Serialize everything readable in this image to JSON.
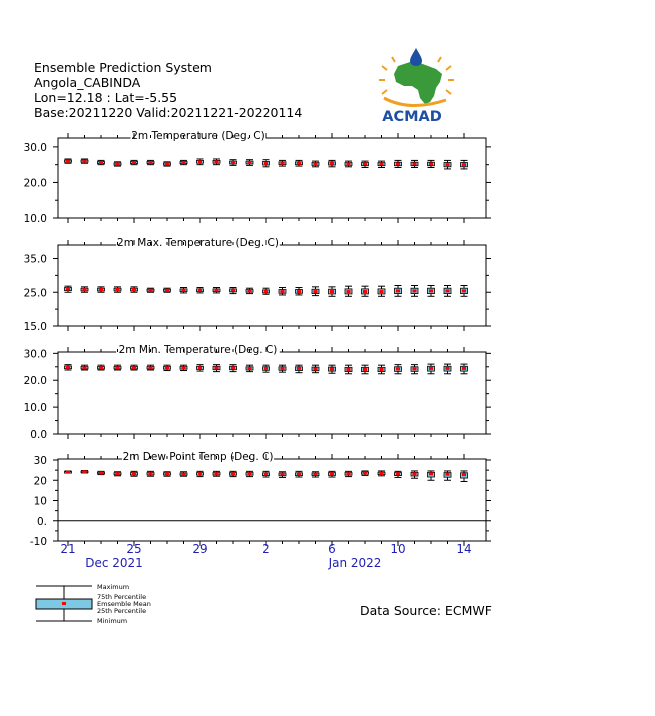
{
  "header": {
    "line1": "Ensemble Prediction System",
    "line2": "Angola_CABINDA",
    "line3": "Lon=12.18 : Lat=-5.55",
    "line4": "Base:20211220 Valid:20211221-20220114"
  },
  "logo": {
    "text": "ACMAD"
  },
  "source": "Data Source: ECMWF",
  "legend": {
    "items": [
      "Maximum",
      "75th Percentile",
      "Emsemble Mean",
      "25th Percentile",
      "Minimum"
    ]
  },
  "colors": {
    "axis_label": "#1f1fb4",
    "mean": "#ff0000",
    "box_fill": "#7ec8e3",
    "logo_blue": "#1e4fa3",
    "logo_green": "#3a9a3a",
    "logo_orange": "#f0a020"
  },
  "chart_data": [
    {
      "type": "box",
      "title": "2m Temperature (Deg. C)",
      "ylim": [
        10,
        32.5
      ],
      "yticks": [
        "30.0",
        "20.0",
        "10.0"
      ],
      "ytick_values": [
        30,
        20,
        10
      ],
      "x": [
        21,
        22,
        23,
        24,
        25,
        26,
        27,
        28,
        29,
        30,
        31,
        1,
        2,
        3,
        4,
        5,
        6,
        7,
        8,
        9,
        10,
        11,
        12,
        13,
        14
      ],
      "mean": [
        26.0,
        26.0,
        25.6,
        25.2,
        25.6,
        25.6,
        25.2,
        25.6,
        25.8,
        25.8,
        25.6,
        25.6,
        25.4,
        25.4,
        25.4,
        25.2,
        25.4,
        25.2,
        25.2,
        25.2,
        25.2,
        25.2,
        25.2,
        25.0,
        25.0
      ],
      "min": [
        25.4,
        25.4,
        25.0,
        24.6,
        25.0,
        25.0,
        24.6,
        25.0,
        25.0,
        25.0,
        24.8,
        24.8,
        24.4,
        24.6,
        24.6,
        24.4,
        24.4,
        24.4,
        24.2,
        24.2,
        24.2,
        24.2,
        24.2,
        23.8,
        23.8
      ],
      "max": [
        26.6,
        26.6,
        26.2,
        25.8,
        26.2,
        26.2,
        25.8,
        26.2,
        26.6,
        26.6,
        26.4,
        26.4,
        26.4,
        26.2,
        26.2,
        26.0,
        26.2,
        26.0,
        26.0,
        26.0,
        26.2,
        26.2,
        26.2,
        26.2,
        26.2
      ]
    },
    {
      "type": "box",
      "title": "2m Max. Temperature (Deg. C)",
      "ylim": [
        15,
        39
      ],
      "yticks": [
        "35.0",
        "25.0",
        "15.0"
      ],
      "ytick_values": [
        35,
        25,
        15
      ],
      "x": [
        21,
        22,
        23,
        24,
        25,
        26,
        27,
        28,
        29,
        30,
        31,
        1,
        2,
        3,
        4,
        5,
        6,
        7,
        8,
        9,
        10,
        11,
        12,
        13,
        14
      ],
      "mean": [
        26.0,
        25.8,
        25.8,
        25.8,
        25.8,
        25.6,
        25.6,
        25.6,
        25.6,
        25.6,
        25.6,
        25.4,
        25.2,
        25.2,
        25.2,
        25.2,
        25.2,
        25.2,
        25.2,
        25.2,
        25.4,
        25.4,
        25.4,
        25.4,
        25.4
      ],
      "min": [
        25.0,
        25.0,
        25.0,
        25.0,
        25.0,
        25.0,
        25.0,
        24.8,
        24.8,
        24.8,
        24.6,
        24.6,
        24.4,
        24.2,
        24.2,
        24.0,
        23.8,
        23.8,
        23.8,
        23.8,
        23.8,
        23.8,
        23.8,
        23.8,
        23.8
      ],
      "max": [
        26.8,
        26.6,
        26.6,
        26.6,
        26.6,
        26.2,
        26.2,
        26.4,
        26.4,
        26.4,
        26.4,
        26.2,
        26.2,
        26.4,
        26.4,
        26.6,
        26.6,
        26.8,
        26.8,
        26.8,
        27.0,
        27.0,
        27.0,
        27.0,
        27.0
      ]
    },
    {
      "type": "box",
      "title": "2m Min. Temperature (Deg. C)",
      "ylim": [
        0,
        30.5
      ],
      "yticks": [
        "30.0",
        "20.0",
        "10.0",
        "0.0"
      ],
      "ytick_values": [
        30,
        20,
        10,
        0
      ],
      "x": [
        21,
        22,
        23,
        24,
        25,
        26,
        27,
        28,
        29,
        30,
        31,
        1,
        2,
        3,
        4,
        5,
        6,
        7,
        8,
        9,
        10,
        11,
        12,
        13,
        14
      ],
      "mean": [
        24.8,
        24.6,
        24.6,
        24.6,
        24.6,
        24.6,
        24.6,
        24.6,
        24.6,
        24.6,
        24.6,
        24.4,
        24.4,
        24.4,
        24.4,
        24.2,
        24.2,
        24.0,
        24.0,
        24.0,
        24.2,
        24.2,
        24.4,
        24.4,
        24.4
      ],
      "min": [
        23.8,
        23.8,
        23.8,
        23.8,
        23.8,
        23.8,
        23.6,
        23.6,
        23.4,
        23.2,
        23.2,
        23.2,
        23.0,
        23.0,
        22.8,
        22.8,
        22.6,
        22.4,
        22.4,
        22.4,
        22.4,
        22.4,
        22.4,
        22.4,
        22.4
      ],
      "max": [
        25.8,
        25.6,
        25.6,
        25.6,
        25.6,
        25.6,
        25.6,
        25.6,
        25.8,
        25.8,
        25.8,
        25.6,
        25.6,
        25.6,
        25.6,
        25.6,
        25.6,
        25.6,
        25.6,
        25.6,
        25.8,
        25.8,
        26.0,
        26.0,
        26.0
      ]
    },
    {
      "type": "box",
      "title": "2m Dew Point Temp (Deg. C)",
      "ylim": [
        -10,
        30.5
      ],
      "yticks": [
        "30",
        "20",
        "10",
        "0.",
        "-10"
      ],
      "ytick_values": [
        30,
        20,
        10,
        0,
        -10
      ],
      "x": [
        21,
        22,
        23,
        24,
        25,
        26,
        27,
        28,
        29,
        30,
        31,
        1,
        2,
        3,
        4,
        5,
        6,
        7,
        8,
        9,
        10,
        11,
        12,
        13,
        14
      ],
      "mean": [
        24.0,
        24.2,
        23.6,
        23.2,
        23.2,
        23.2,
        23.2,
        23.0,
        23.2,
        23.2,
        23.2,
        23.2,
        23.0,
        23.0,
        23.0,
        23.0,
        23.2,
        23.2,
        23.6,
        23.4,
        23.2,
        23.2,
        23.2,
        23.0,
        22.8
      ],
      "min": [
        23.6,
        23.6,
        22.8,
        22.2,
        22.0,
        22.0,
        22.0,
        22.0,
        21.8,
        22.0,
        21.8,
        21.8,
        21.6,
        21.4,
        21.6,
        21.6,
        21.6,
        21.8,
        22.4,
        22.2,
        21.4,
        21.0,
        20.0,
        20.0,
        19.4
      ],
      "max": [
        24.6,
        24.8,
        24.4,
        24.2,
        24.4,
        24.4,
        24.2,
        24.2,
        24.4,
        24.4,
        24.4,
        24.4,
        24.4,
        24.2,
        24.4,
        24.2,
        24.4,
        24.4,
        24.6,
        24.6,
        24.4,
        24.6,
        24.6,
        24.6,
        24.6
      ],
      "zero_line": true
    }
  ],
  "x_axis": {
    "tick_labels": [
      "21",
      "25",
      "29",
      "2",
      "6",
      "10",
      "14"
    ],
    "month_labels": [
      "Dec 2021",
      "Jan 2022"
    ]
  }
}
